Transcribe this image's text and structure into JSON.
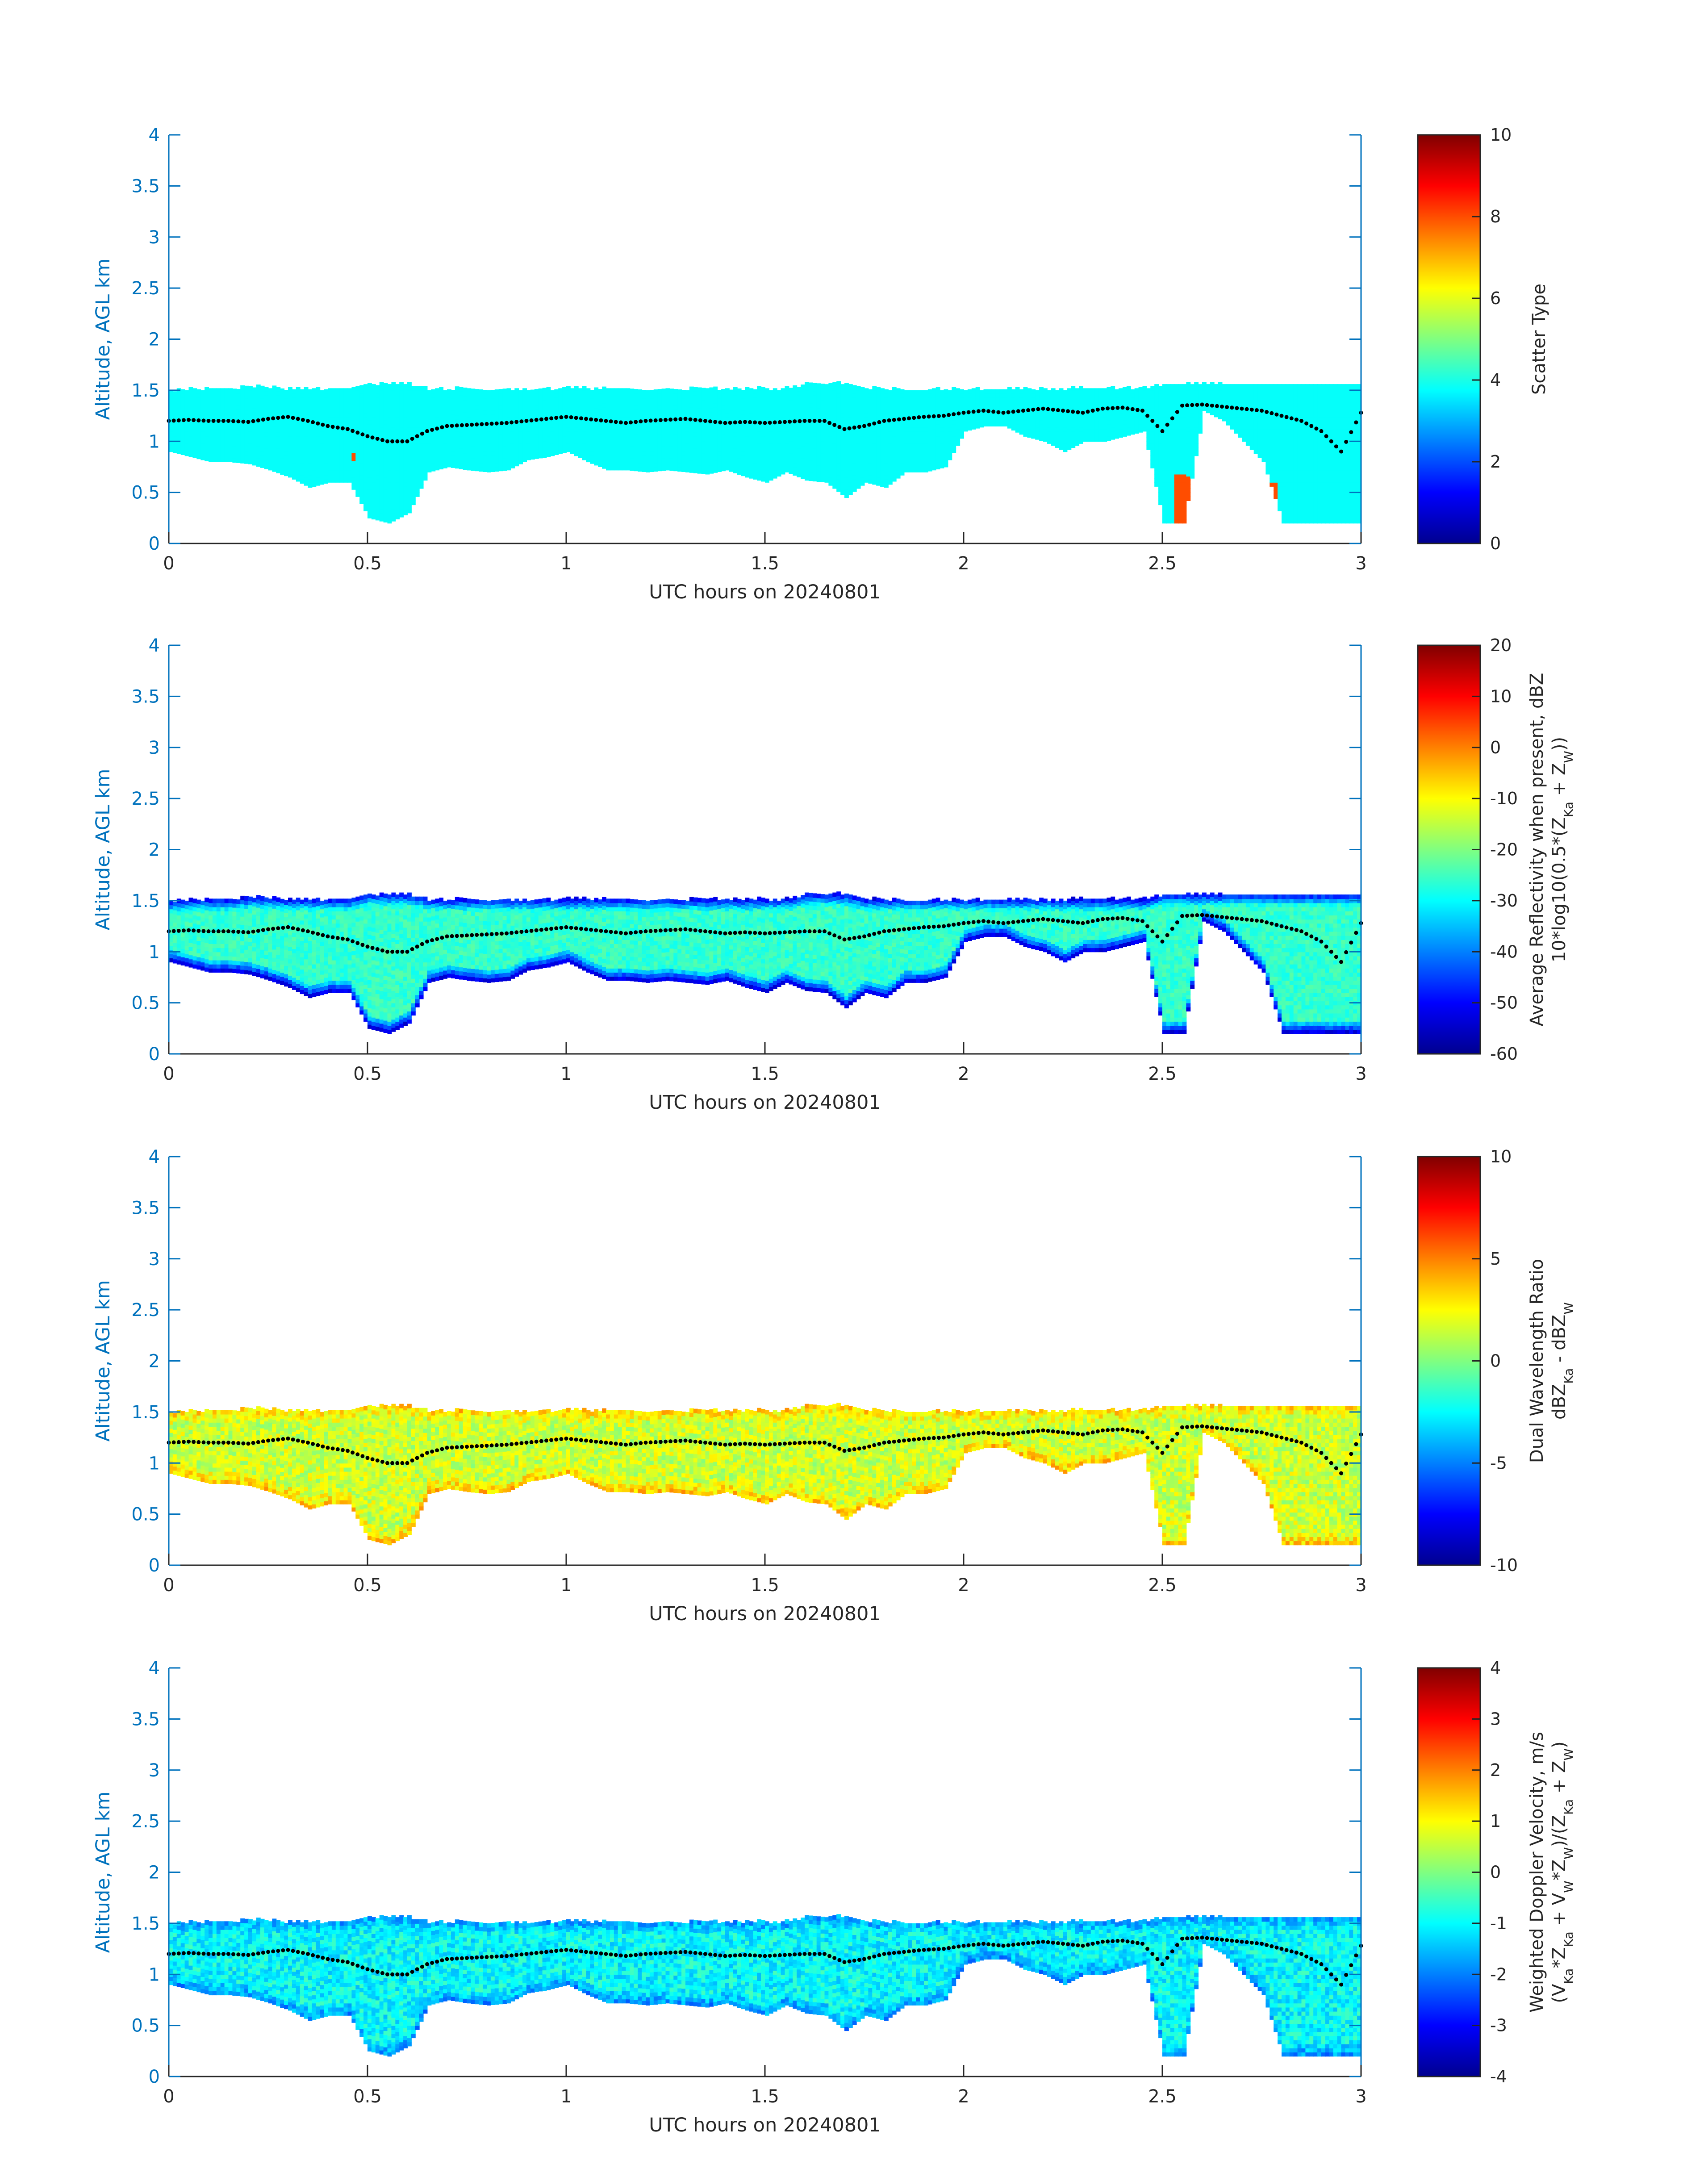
{
  "figure": {
    "colormap": [
      "#00008F",
      "#0000FF",
      "#0080FF",
      "#00FFFF",
      "#80FF80",
      "#FFFF00",
      "#FF8000",
      "#FF0000",
      "#800000"
    ],
    "axis_color": "#0072BD",
    "marker_color": "#000000"
  },
  "chart_data": [
    {
      "type": "heatmap",
      "id": "scatter-type",
      "xlabel": "UTC hours on 20240801",
      "ylabel": "Altitude, AGL km",
      "xlim": [
        0,
        3
      ],
      "ylim": [
        0,
        4
      ],
      "xticks": [
        0,
        0.5,
        1,
        1.5,
        2,
        2.5,
        3
      ],
      "xtick_labels": [
        "0",
        "0.5",
        "1",
        "1.5",
        "2",
        "2.5",
        "3"
      ],
      "yticks": [
        0,
        0.5,
        1,
        1.5,
        2,
        2.5,
        3,
        3.5,
        4
      ],
      "ytick_labels": [
        "0",
        "0.5",
        "1",
        "1.5",
        "2",
        "2.5",
        "3",
        "3.5",
        "4"
      ],
      "colorbar": {
        "label_lines": [
          "Scatter Type"
        ],
        "clim": [
          0,
          10
        ],
        "ticks": [
          0,
          2,
          4,
          6,
          8,
          10
        ],
        "tick_labels": [
          "0",
          "2",
          "4",
          "6",
          "8",
          "10"
        ]
      },
      "field": {
        "kind": "constant",
        "value": 3.8,
        "hotspots": [
          {
            "x0": 2.52,
            "x1": 2.56,
            "y0": 0.2,
            "y1": 0.65,
            "value": 8
          },
          {
            "x0": 2.07,
            "x1": 2.08,
            "y0": 0.5,
            "y1": 0.6,
            "value": 8
          },
          {
            "x0": 0.46,
            "x1": 0.47,
            "y0": 0.8,
            "y1": 0.87,
            "value": 8
          },
          {
            "x0": 2.76,
            "x1": 2.78,
            "y0": 0.4,
            "y1": 0.6,
            "value": 8
          },
          {
            "x0": 2.63,
            "x1": 2.65,
            "y0": 0.65,
            "y1": 0.75,
            "value": 8
          }
        ]
      }
    },
    {
      "type": "heatmap",
      "id": "reflectivity",
      "xlabel": "UTC hours on 20240801",
      "ylabel": "Altitude, AGL km",
      "xlim": [
        0,
        3
      ],
      "ylim": [
        0,
        4
      ],
      "xticks": [
        0,
        0.5,
        1,
        1.5,
        2,
        2.5,
        3
      ],
      "xtick_labels": [
        "0",
        "0.5",
        "1",
        "1.5",
        "2",
        "2.5",
        "3"
      ],
      "yticks": [
        0,
        0.5,
        1,
        1.5,
        2,
        2.5,
        3,
        3.5,
        4
      ],
      "ytick_labels": [
        "0",
        "0.5",
        "1",
        "1.5",
        "2",
        "2.5",
        "3",
        "3.5",
        "4"
      ],
      "colorbar": {
        "label_lines": [
          "Average Reflectivity when present, dBZ",
          "10*log10(0.5*(Z_Ka + Z_W))"
        ],
        "clim": [
          -60,
          20
        ],
        "ticks": [
          -60,
          -50,
          -40,
          -30,
          -20,
          -10,
          0,
          10,
          20
        ],
        "tick_labels": [
          "-60",
          "-50",
          "-40",
          "-30",
          "-20",
          "-10",
          "0",
          "10",
          "20"
        ]
      },
      "field": {
        "kind": "gradient",
        "center": -26,
        "spread": 6,
        "edge": -52
      }
    },
    {
      "type": "heatmap",
      "id": "dwr",
      "xlabel": "UTC hours on 20240801",
      "ylabel": "Altitude, AGL km",
      "xlim": [
        0,
        3
      ],
      "ylim": [
        0,
        4
      ],
      "xticks": [
        0,
        0.5,
        1,
        1.5,
        2,
        2.5,
        3
      ],
      "xtick_labels": [
        "0",
        "0.5",
        "1",
        "1.5",
        "2",
        "2.5",
        "3"
      ],
      "yticks": [
        0,
        0.5,
        1,
        1.5,
        2,
        2.5,
        3,
        3.5,
        4
      ],
      "ytick_labels": [
        "0",
        "0.5",
        "1",
        "1.5",
        "2",
        "2.5",
        "3",
        "3.5",
        "4"
      ],
      "colorbar": {
        "label_lines": [
          "Dual Wavelength Ratio",
          "dBZ_Ka - dBZ_W"
        ],
        "clim": [
          -10,
          10
        ],
        "ticks": [
          -10,
          -5,
          0,
          5,
          10
        ],
        "tick_labels": [
          "-10",
          "-5",
          "0",
          "5",
          "10"
        ]
      },
      "field": {
        "kind": "noise",
        "center": 1.5,
        "spread": 1.4,
        "edge": 3.5
      }
    },
    {
      "type": "heatmap",
      "id": "doppler",
      "xlabel": "UTC hours on 20240801",
      "ylabel": "Altitude, AGL km",
      "xlim": [
        0,
        3
      ],
      "ylim": [
        0,
        4
      ],
      "xticks": [
        0,
        0.5,
        1,
        1.5,
        2,
        2.5,
        3
      ],
      "xtick_labels": [
        "0",
        "0.5",
        "1",
        "1.5",
        "2",
        "2.5",
        "3"
      ],
      "yticks": [
        0,
        0.5,
        1,
        1.5,
        2,
        2.5,
        3,
        3.5,
        4
      ],
      "ytick_labels": [
        "0",
        "0.5",
        "1",
        "1.5",
        "2",
        "2.5",
        "3",
        "3.5",
        "4"
      ],
      "colorbar": {
        "label_lines": [
          "Weighted Doppler Velocity, m/s",
          "(V_Ka*Z_Ka + V_W*Z_W)/(Z_Ka + Z_W)"
        ],
        "clim": [
          -4,
          4
        ],
        "ticks": [
          -4,
          -3,
          -2,
          -1,
          0,
          1,
          2,
          3,
          4
        ],
        "tick_labels": [
          "-4",
          "-3",
          "-2",
          "-1",
          "0",
          "1",
          "2",
          "3",
          "4"
        ]
      },
      "field": {
        "kind": "noise",
        "center": -1.0,
        "spread": 0.55,
        "edge": -1.8
      }
    }
  ],
  "cloud_envelope": {
    "x": [
      0,
      0.05,
      0.1,
      0.15,
      0.2,
      0.25,
      0.3,
      0.35,
      0.4,
      0.45,
      0.5,
      0.55,
      0.6,
      0.65,
      0.7,
      0.75,
      0.8,
      0.85,
      0.9,
      0.95,
      1.0,
      1.05,
      1.1,
      1.15,
      1.2,
      1.25,
      1.3,
      1.35,
      1.4,
      1.45,
      1.5,
      1.55,
      1.6,
      1.65,
      1.7,
      1.75,
      1.8,
      1.85,
      1.9,
      1.95,
      2.0,
      2.05,
      2.1,
      2.15,
      2.2,
      2.25,
      2.3,
      2.35,
      2.4,
      2.45,
      2.5,
      2.55,
      2.6,
      2.65,
      2.7,
      2.75,
      2.8,
      2.85,
      2.9,
      2.95,
      3.0
    ],
    "top": [
      1.48,
      1.5,
      1.5,
      1.5,
      1.52,
      1.52,
      1.5,
      1.5,
      1.5,
      1.5,
      1.55,
      1.55,
      1.55,
      1.5,
      1.5,
      1.5,
      1.5,
      1.5,
      1.5,
      1.5,
      1.5,
      1.5,
      1.5,
      1.5,
      1.5,
      1.5,
      1.5,
      1.5,
      1.5,
      1.5,
      1.5,
      1.5,
      1.55,
      1.55,
      1.55,
      1.5,
      1.5,
      1.5,
      1.5,
      1.5,
      1.5,
      1.5,
      1.5,
      1.5,
      1.5,
      1.5,
      1.5,
      1.5,
      1.5,
      1.5,
      1.55,
      1.55,
      1.55,
      1.55,
      1.55,
      1.55,
      1.55,
      1.55,
      1.55,
      1.55,
      1.55
    ],
    "base": [
      0.9,
      0.85,
      0.8,
      0.8,
      0.78,
      0.72,
      0.65,
      0.55,
      0.6,
      0.6,
      0.25,
      0.2,
      0.3,
      0.7,
      0.75,
      0.72,
      0.7,
      0.72,
      0.82,
      0.85,
      0.9,
      0.8,
      0.72,
      0.72,
      0.7,
      0.72,
      0.7,
      0.68,
      0.72,
      0.65,
      0.6,
      0.7,
      0.62,
      0.6,
      0.45,
      0.6,
      0.55,
      0.7,
      0.7,
      0.75,
      1.1,
      1.15,
      1.15,
      1.05,
      1.0,
      0.9,
      1.0,
      1.0,
      1.05,
      1.1,
      0.2,
      0.2,
      1.3,
      1.2,
      1.0,
      0.8,
      0.2,
      0.2,
      0.2,
      0.2,
      0.2
    ]
  },
  "marker_series": {
    "x": [
      0,
      0.05,
      0.1,
      0.15,
      0.2,
      0.25,
      0.3,
      0.35,
      0.4,
      0.45,
      0.5,
      0.55,
      0.6,
      0.65,
      0.7,
      0.75,
      0.8,
      0.85,
      0.9,
      0.95,
      1.0,
      1.05,
      1.1,
      1.15,
      1.2,
      1.25,
      1.3,
      1.35,
      1.4,
      1.45,
      1.5,
      1.55,
      1.6,
      1.65,
      1.7,
      1.75,
      1.8,
      1.85,
      1.9,
      1.95,
      2.0,
      2.05,
      2.1,
      2.15,
      2.2,
      2.25,
      2.3,
      2.35,
      2.4,
      2.45,
      2.5,
      2.55,
      2.6,
      2.65,
      2.7,
      2.75,
      2.8,
      2.85,
      2.9,
      2.95,
      3.0
    ],
    "y": [
      1.2,
      1.21,
      1.2,
      1.2,
      1.19,
      1.22,
      1.24,
      1.2,
      1.15,
      1.12,
      1.05,
      1.0,
      1.0,
      1.1,
      1.15,
      1.16,
      1.17,
      1.18,
      1.2,
      1.22,
      1.24,
      1.22,
      1.2,
      1.18,
      1.2,
      1.21,
      1.22,
      1.2,
      1.18,
      1.19,
      1.18,
      1.19,
      1.2,
      1.2,
      1.12,
      1.15,
      1.2,
      1.22,
      1.24,
      1.25,
      1.28,
      1.3,
      1.28,
      1.3,
      1.32,
      1.3,
      1.28,
      1.32,
      1.33,
      1.3,
      1.1,
      1.35,
      1.36,
      1.34,
      1.32,
      1.3,
      1.25,
      1.2,
      1.1,
      0.9,
      1.28
    ]
  }
}
